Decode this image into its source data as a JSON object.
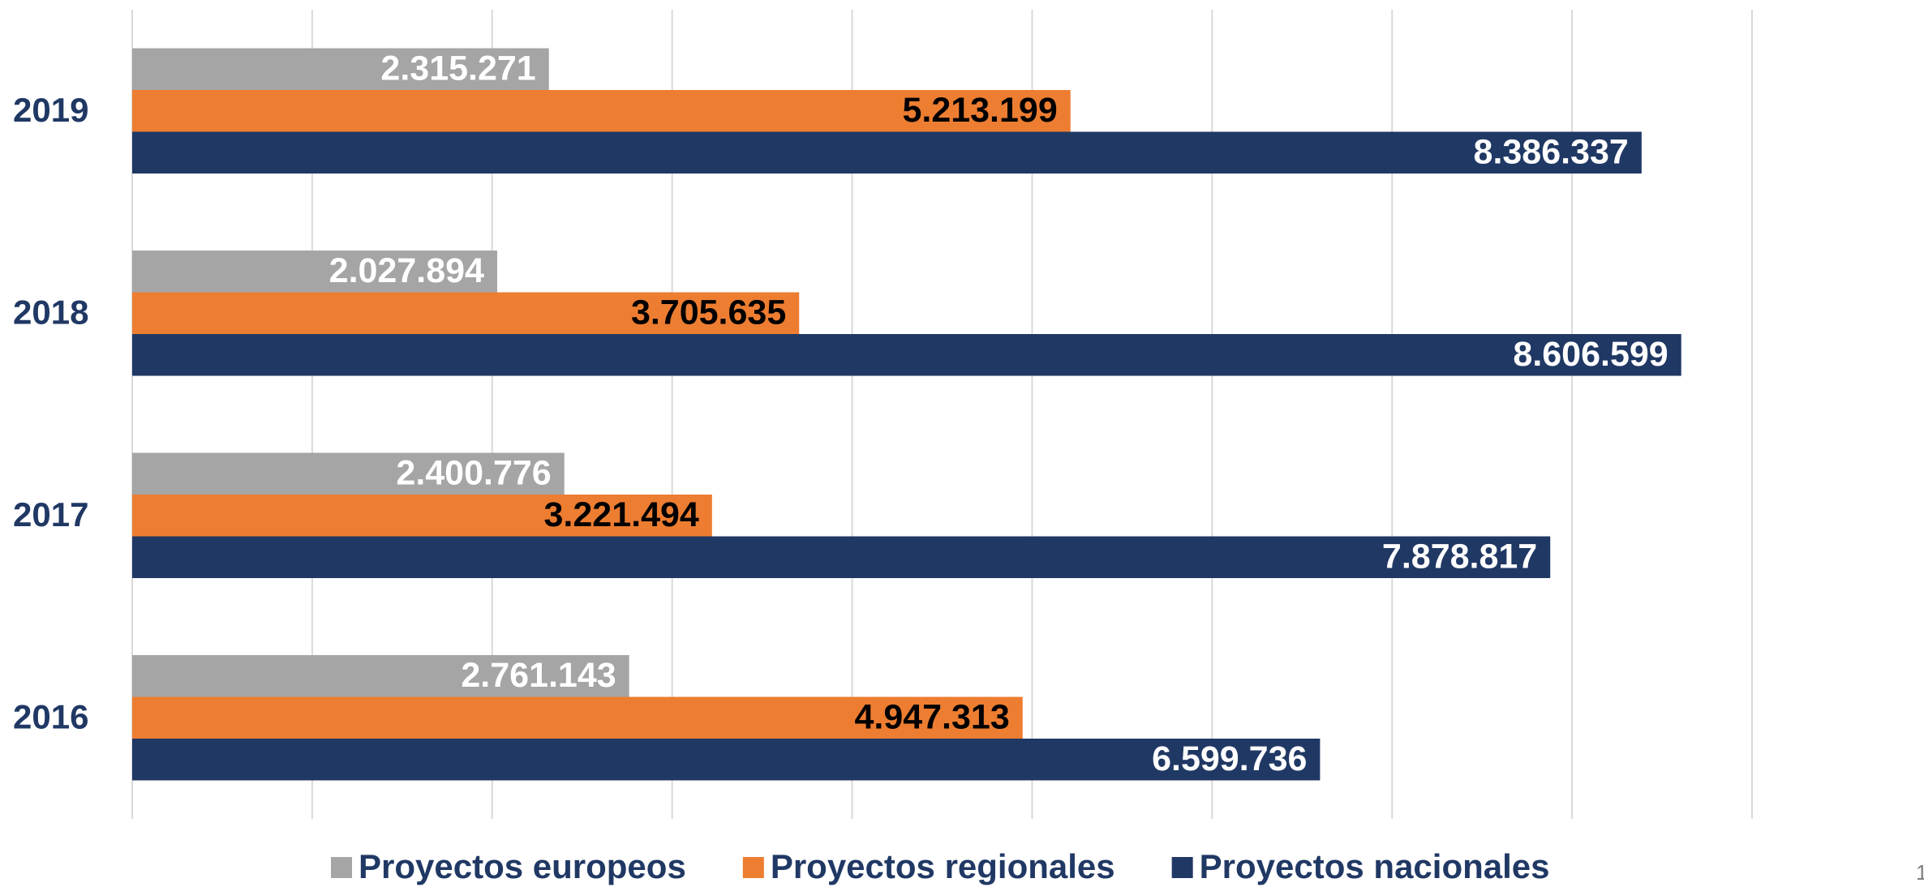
{
  "chart_data": {
    "type": "barh",
    "categories": [
      "2019",
      "2018",
      "2017",
      "2016"
    ],
    "series": [
      {
        "name": "Proyectos europeos",
        "color": "#a5a5a5",
        "label_color": "#ffffff",
        "values": [
          2315271,
          2027894,
          2400776,
          2761143
        ],
        "value_labels": [
          "2.315.271",
          "2.027.894",
          "2.400.776",
          "2.761.143"
        ]
      },
      {
        "name": "Proyectos regionales",
        "color": "#ed7d31",
        "label_color": "#000000",
        "values": [
          5213199,
          3705635,
          3221494,
          4947313
        ],
        "value_labels": [
          "5.213.199",
          "3.705.635",
          "3.221.494",
          "4.947.313"
        ]
      },
      {
        "name": "Proyectos nacionales",
        "color": "#203864",
        "label_color": "#ffffff",
        "values": [
          8386337,
          8606599,
          7878817,
          6599736
        ],
        "value_labels": [
          "8.386.337",
          "8.606.599",
          "7.878.817",
          "6.599.736"
        ]
      }
    ],
    "xlim": [
      0,
      9000000
    ],
    "xticks": [
      0,
      1000000,
      2000000,
      3000000,
      4000000,
      5000000,
      6000000,
      7000000,
      8000000,
      9000000
    ],
    "grid": true,
    "legend": "bottom"
  },
  "page_number": "1"
}
